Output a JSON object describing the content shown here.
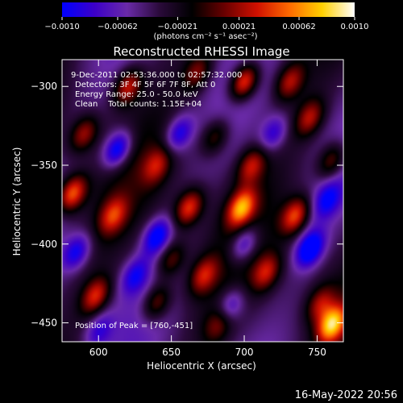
{
  "colorbar": {
    "tick_labels": [
      "-0.0010",
      "-0.00062",
      "-0.00021",
      "0.00021",
      "0.00062",
      "0.0010"
    ],
    "range": [
      -0.001,
      0.001
    ],
    "unit_label": "(photons cm⁻² s⁻¹ asec⁻²)"
  },
  "chart_data": {
    "type": "heatmap",
    "title": "Reconstructed RHESSI Image",
    "xlabel": "Heliocentric X (arcsec)",
    "ylabel": "Heliocentric Y (arcsec)",
    "xlim": [
      575,
      768
    ],
    "ylim": [
      -462,
      -283
    ],
    "x_ticks": [
      600,
      650,
      700,
      750
    ],
    "y_ticks": [
      -300,
      -350,
      -400,
      -450
    ],
    "x_tick_labels": [
      "600",
      "650",
      "700",
      "750"
    ],
    "y_tick_labels": [
      "−300",
      "−350",
      "−400",
      "−450"
    ],
    "colormap": [
      "#0000ff",
      "#3c00c8",
      "#6a2aa8",
      "#2a0a3a",
      "#000000",
      "#6a0000",
      "#d01000",
      "#ff6a00",
      "#ffd000",
      "#ffffff"
    ],
    "annotations": [
      "9-Dec-2011 02:53:36.000 to 02:57:32.000",
      "Detectors: 3F 4F 5F 6F 7F 8F, Att 0",
      "Energy Range: 25.0 - 50.0 keV",
      "Clean    Total counts: 1.15E+04"
    ],
    "peak_label": "Position of Peak = [760,-451]",
    "peak": [
      760,
      -451
    ],
    "peak_value": 0.001,
    "blobs": [
      {
        "x": 700,
        "y": -297,
        "v": 0.001
      },
      {
        "x": 620,
        "y": -300,
        "v": 0.0007
      },
      {
        "x": 668,
        "y": -291,
        "v": 0.0005
      },
      {
        "x": 731,
        "y": -297,
        "v": 0.0006
      },
      {
        "x": 680,
        "y": -332,
        "v": 0.0005
      },
      {
        "x": 760,
        "y": -347,
        "v": 0.0006
      },
      {
        "x": 590,
        "y": -330,
        "v": 0.0006
      },
      {
        "x": 582,
        "y": -368,
        "v": 0.0009
      },
      {
        "x": 610,
        "y": -382,
        "v": 0.0006
      },
      {
        "x": 640,
        "y": -350,
        "v": 0.0005
      },
      {
        "x": 705,
        "y": -350,
        "v": 0.0006
      },
      {
        "x": 698,
        "y": -377,
        "v": 0.0009
      },
      {
        "x": 735,
        "y": -382,
        "v": 0.0008
      },
      {
        "x": 662,
        "y": -377,
        "v": 0.0008
      },
      {
        "x": 672,
        "y": -420,
        "v": 0.0006
      },
      {
        "x": 650,
        "y": -410,
        "v": 0.0005
      },
      {
        "x": 715,
        "y": -418,
        "v": 0.0006
      },
      {
        "x": 598,
        "y": -433,
        "v": 0.0007
      },
      {
        "x": 640,
        "y": -437,
        "v": 0.0006
      },
      {
        "x": 752,
        "y": -438,
        "v": 0.0005
      },
      {
        "x": 760,
        "y": -451,
        "v": 0.001
      },
      {
        "x": 683,
        "y": -450,
        "v": 0.0005
      },
      {
        "x": 745,
        "y": -320,
        "v": 0.0006
      },
      {
        "x": 613,
        "y": -340,
        "v": -0.0008
      },
      {
        "x": 655,
        "y": -330,
        "v": -0.0006
      },
      {
        "x": 640,
        "y": -395,
        "v": -0.0007
      },
      {
        "x": 700,
        "y": -400,
        "v": -0.0006
      },
      {
        "x": 745,
        "y": -403,
        "v": -0.0008
      },
      {
        "x": 720,
        "y": -330,
        "v": -0.0005
      },
      {
        "x": 625,
        "y": -420,
        "v": -0.0005
      },
      {
        "x": 690,
        "y": -440,
        "v": -0.0006
      },
      {
        "x": 585,
        "y": -405,
        "v": -0.0006
      },
      {
        "x": 757,
        "y": -372,
        "v": -0.0005
      },
      {
        "x": 600,
        "y": -455,
        "v": -0.0004
      }
    ]
  },
  "timestamp": "16-May-2022 20:56"
}
